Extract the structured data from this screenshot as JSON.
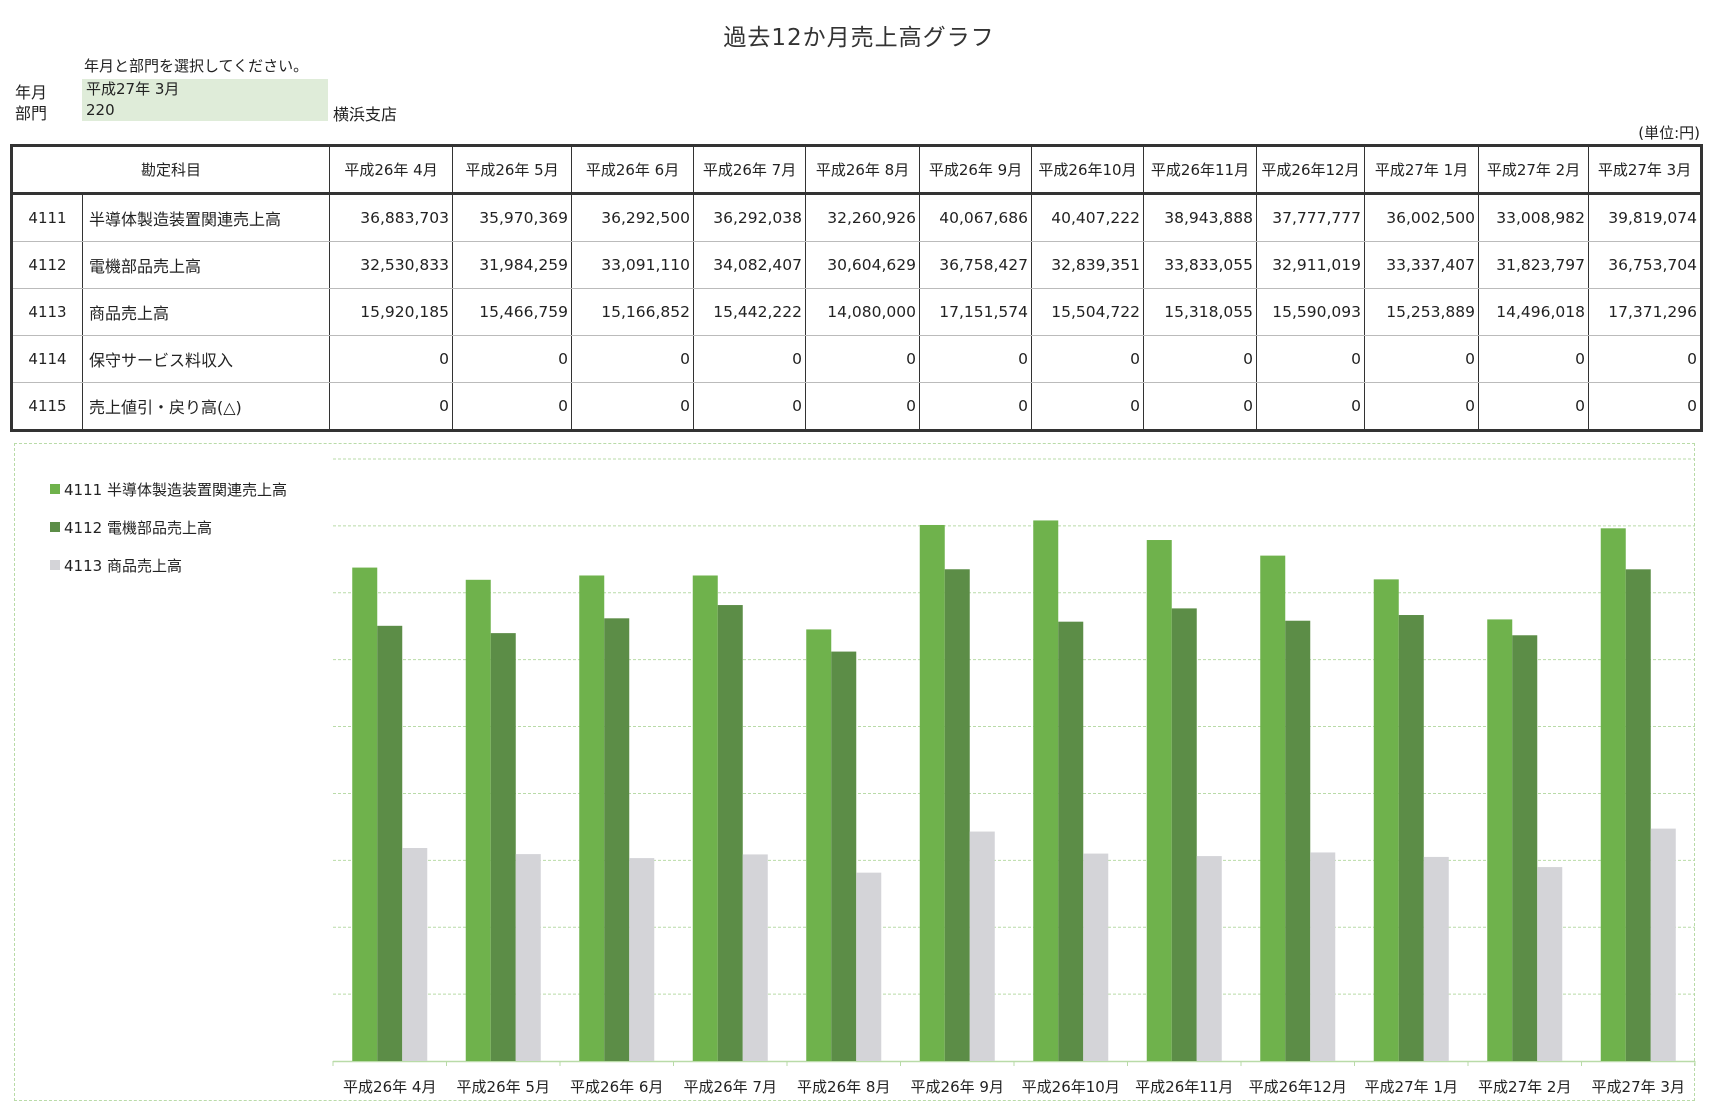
{
  "page": {
    "title": "過去12か月売上高グラフ",
    "instruction": "年月と部門を選択してください。",
    "unit_note": "(単位:円)"
  },
  "form": {
    "year_month_label": "年月",
    "year_month_value": "平成27年 3月",
    "department_label": "部門",
    "department_value": "220",
    "department_name": "横浜支店"
  },
  "table": {
    "header_account": "勘定科目",
    "months": [
      "平成26年 4月",
      "平成26年 5月",
      "平成26年 6月",
      "平成26年 7月",
      "平成26年 8月",
      "平成26年 9月",
      "平成26年10月",
      "平成26年11月",
      "平成26年12月",
      "平成27年 1月",
      "平成27年 2月",
      "平成27年 3月"
    ],
    "rows": [
      {
        "code": "4111",
        "name": "半導体製造装置関連売上高",
        "values": [
          "36,883,703",
          "35,970,369",
          "36,292,500",
          "36,292,038",
          "32,260,926",
          "40,067,686",
          "40,407,222",
          "38,943,888",
          "37,777,777",
          "36,002,500",
          "33,008,982",
          "39,819,074"
        ]
      },
      {
        "code": "4112",
        "name": "電機部品売上高",
        "values": [
          "32,530,833",
          "31,984,259",
          "33,091,110",
          "34,082,407",
          "30,604,629",
          "36,758,427",
          "32,839,351",
          "33,833,055",
          "32,911,019",
          "33,337,407",
          "31,823,797",
          "36,753,704"
        ]
      },
      {
        "code": "4113",
        "name": "商品売上高",
        "values": [
          "15,920,185",
          "15,466,759",
          "15,166,852",
          "15,442,222",
          "14,080,000",
          "17,151,574",
          "15,504,722",
          "15,318,055",
          "15,590,093",
          "15,253,889",
          "14,496,018",
          "17,371,296"
        ]
      },
      {
        "code": "4114",
        "name": "保守サービス料収入",
        "values": [
          "0",
          "0",
          "0",
          "0",
          "0",
          "0",
          "0",
          "0",
          "0",
          "0",
          "0",
          "0"
        ]
      },
      {
        "code": "4115",
        "name": "売上値引・戻り高(△)",
        "values": [
          "0",
          "0",
          "0",
          "0",
          "0",
          "0",
          "0",
          "0",
          "0",
          "0",
          "0",
          "0"
        ]
      }
    ]
  },
  "colors": {
    "series_4111": "#6fb24c",
    "series_4112": "#5c8d47",
    "series_4113": "#d4d4d8",
    "gridline": "#b9dba8",
    "input_bg": "#dfecd9"
  },
  "chart_data": {
    "type": "bar",
    "title": "過去12か月売上高グラフ",
    "xlabel": "",
    "ylabel": "",
    "ylim": [
      0,
      45000000
    ],
    "y_tick_step": 5000000,
    "y_tick_labels_visible": false,
    "grid": true,
    "legend_position": "left",
    "categories": [
      "平成26年 4月",
      "平成26年 5月",
      "平成26年 6月",
      "平成26年 7月",
      "平成26年 8月",
      "平成26年 9月",
      "平成26年10月",
      "平成26年11月",
      "平成26年12月",
      "平成27年 1月",
      "平成27年 2月",
      "平成27年 3月"
    ],
    "series": [
      {
        "name": "4111 半導体製造装置関連売上高",
        "color": "#6fb24c",
        "values": [
          36883703,
          35970369,
          36292500,
          36292038,
          32260926,
          40067686,
          40407222,
          38943888,
          37777777,
          36002500,
          33008982,
          39819074
        ]
      },
      {
        "name": "4112 電機部品売上高",
        "color": "#5c8d47",
        "values": [
          32530833,
          31984259,
          33091110,
          34082407,
          30604629,
          36758427,
          32839351,
          33833055,
          32911019,
          33337407,
          31823797,
          36753704
        ]
      },
      {
        "name": "4113 商品売上高",
        "color": "#d4d4d8",
        "values": [
          15920185,
          15466759,
          15166852,
          15442222,
          14080000,
          17151574,
          15504722,
          15318055,
          15590093,
          15253889,
          14496018,
          17371296
        ]
      }
    ]
  }
}
